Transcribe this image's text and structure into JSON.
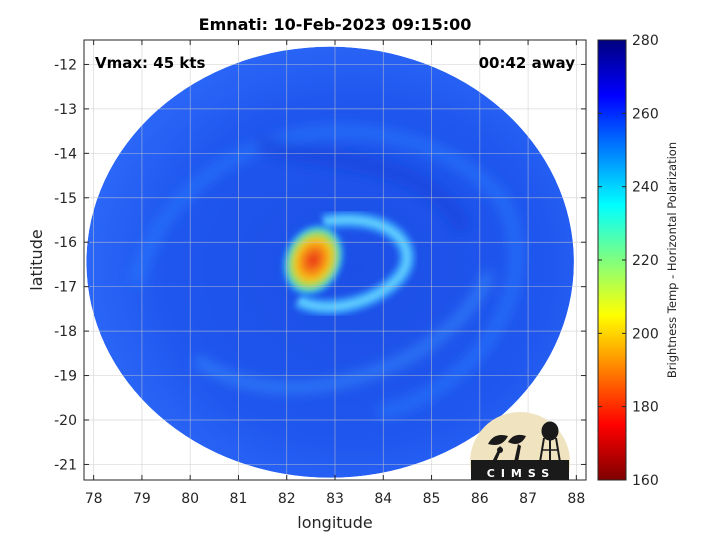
{
  "chart_data": {
    "type": "heatmap",
    "title": "Emnati: 10-Feb-2023 09:15:00",
    "xlabel": "longitude",
    "ylabel": "latitude",
    "xlim": [
      77.8,
      88.2
    ],
    "ylim": [
      -21.35,
      -11.45
    ],
    "x_ticks": [
      78,
      79,
      80,
      81,
      82,
      83,
      84,
      85,
      86,
      87,
      88
    ],
    "x_tick_labels": [
      "78",
      "79",
      "80",
      "81",
      "82",
      "83",
      "84",
      "85",
      "86",
      "87",
      "88"
    ],
    "y_ticks": [
      -12,
      -13,
      -14,
      -15,
      -16,
      -17,
      -18,
      -19,
      -20,
      -21
    ],
    "y_tick_labels": [
      "-12",
      "-13",
      "-14",
      "-15",
      "-16",
      "-17",
      "-18",
      "-19",
      "-20",
      "-21"
    ],
    "grid": true,
    "colormap": "jet",
    "colorbar": {
      "label": "Brightness Temp - Horizontal Polarization",
      "range": [
        160,
        280
      ],
      "ticks": [
        160,
        180,
        200,
        220,
        240,
        260,
        280
      ],
      "tick_labels": [
        "160",
        "180",
        "200",
        "220",
        "240",
        "260",
        "280"
      ]
    },
    "swath": {
      "center_lon": 82.9,
      "center_lat": -16.45,
      "radius_lon": 5.05,
      "radius_lat": 4.85
    },
    "background_value": 262,
    "features": [
      {
        "name": "eye-core",
        "lon": 82.55,
        "lat": -16.4,
        "min_value": 180
      },
      {
        "name": "eyewall-arc",
        "lon_range": [
          82.2,
          84.8
        ],
        "lat_range": [
          -17.3,
          -15.4
        ],
        "min_value": 225
      }
    ],
    "annotations": {
      "left": "Vmax: 45 kts",
      "right": "00:42 away"
    }
  },
  "logo": {
    "text": "CIMSS",
    "colors": {
      "disc": "#efe3c0",
      "ink": "#1a1a1a"
    }
  }
}
